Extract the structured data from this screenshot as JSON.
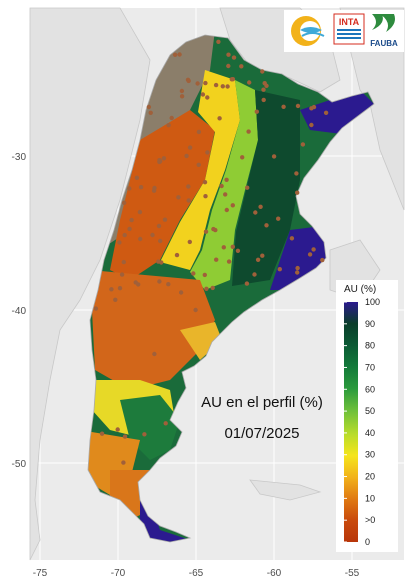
{
  "map": {
    "title_line1": "AU en el perfil (%)",
    "title_line2": "01/07/2025",
    "x_ticks": [
      "-75",
      "-70",
      "-65",
      "-60",
      "-55"
    ],
    "y_ticks": [
      "-30",
      "-40",
      "-50"
    ]
  },
  "legend": {
    "title": "AU (%)",
    "labels": [
      "100",
      "90",
      "80",
      "70",
      "60",
      "50",
      "40",
      "30",
      "20",
      "10",
      ">0",
      "0"
    ],
    "colors": [
      "#2b1a8f",
      "#0a3d2a",
      "#0b5a34",
      "#137a3a",
      "#2a9a3c",
      "#6cbf3a",
      "#b8dc2a",
      "#f5e51c",
      "#f2b21a",
      "#e07a12",
      "#c94a0c",
      "#b8360a"
    ]
  },
  "logos": {
    "inta": "INTA",
    "fauba": "FAUBA"
  },
  "colors": {
    "panel_bg": "#ebebeb",
    "grid": "#ffffff",
    "land_outside": "#d9d9d9",
    "no_data": "#8b7e6a",
    "station_dot": "#a0603a"
  }
}
